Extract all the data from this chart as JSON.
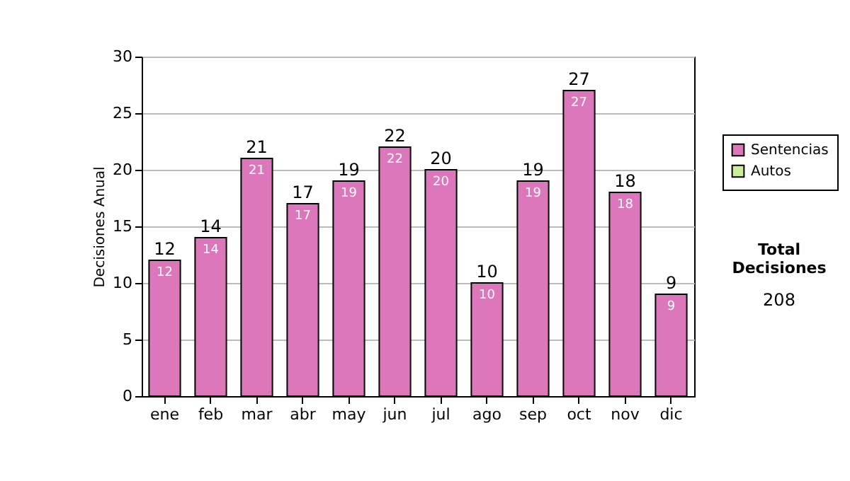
{
  "chart_data": {
    "type": "bar",
    "ylabel": "Decisiones Anual",
    "categories": [
      "ene",
      "feb",
      "mar",
      "abr",
      "may",
      "jun",
      "jul",
      "ago",
      "sep",
      "oct",
      "nov",
      "dic"
    ],
    "series": [
      {
        "name": "Sentencias",
        "color": "#dd77bb",
        "values": [
          12,
          14,
          21,
          17,
          19,
          22,
          20,
          10,
          19,
          27,
          18,
          9
        ]
      },
      {
        "name": "Autos",
        "color": "#ccee99",
        "values": [
          null,
          null,
          null,
          null,
          null,
          null,
          null,
          null,
          null,
          null,
          null,
          null
        ]
      }
    ],
    "data_labels": true,
    "totals": [
      "12",
      "14",
      "21",
      "17",
      "19",
      "22",
      "20",
      "10",
      "19",
      "27",
      "18",
      "9"
    ],
    "ylim": [
      0,
      30
    ],
    "yticks": [
      0,
      5,
      10,
      15,
      20,
      25,
      30
    ],
    "grid": "y",
    "legend": "right",
    "annotations": [
      "Total Decisiones",
      "208"
    ]
  }
}
